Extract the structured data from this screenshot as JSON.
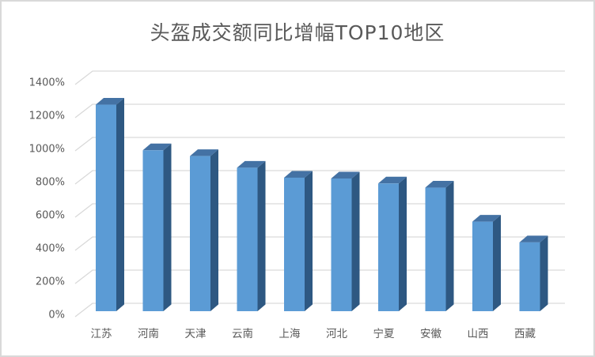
{
  "panel": {
    "background": "#ffffff",
    "border_color": "#d9d9d9"
  },
  "chart_data": {
    "type": "bar",
    "variant": "3d-column",
    "title": "头盔成交额同比增幅TOP10地区",
    "categories": [
      "江苏",
      "河南",
      "天津",
      "云南",
      "上海",
      "河北",
      "宁夏",
      "安徽",
      "山西",
      "西藏"
    ],
    "values": [
      1245,
      970,
      935,
      865,
      805,
      800,
      770,
      745,
      540,
      415
    ],
    "value_unit": "%",
    "xlabel": "",
    "ylabel": "",
    "ylim": [
      0,
      1400
    ],
    "ytick_step": 200,
    "ytick_labels": [
      "0%",
      "200%",
      "400%",
      "600%",
      "800%",
      "1000%",
      "1200%",
      "1400%"
    ],
    "grid": true,
    "legend_position": "none",
    "colors": {
      "bar_front": "#5b9bd5",
      "bar_top": "#4472a4",
      "bar_side": "#2e5882",
      "gridline": "#d9d9d9",
      "axis_text": "#595959",
      "title_text": "#595959"
    }
  }
}
